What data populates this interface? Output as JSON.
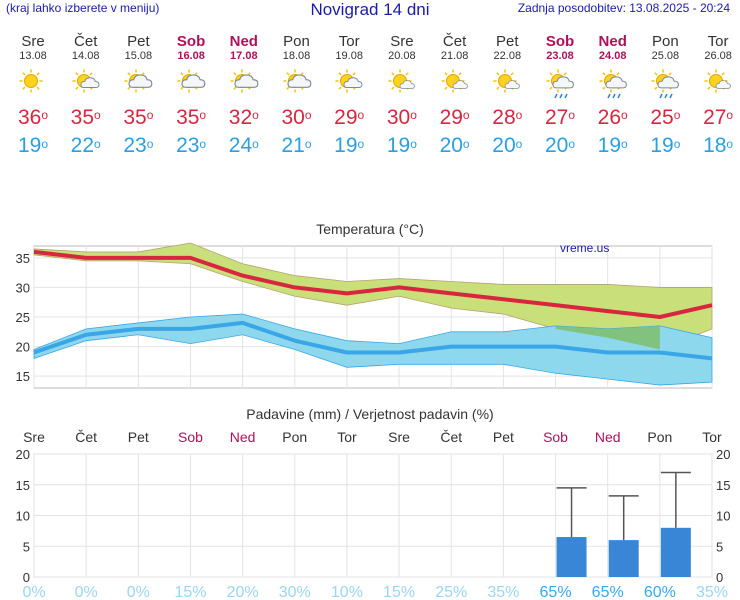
{
  "header": {
    "left_note": "(kraj lahko izberete v meniju)",
    "title": "Novigrad 14 dni",
    "last_update": "Zadnja posodobitev: 13.08.2025 - 20:24"
  },
  "days": [
    {
      "name": "Sre",
      "date": "13.08",
      "weekend": false,
      "icon": "sunny-icon",
      "tmax": "36",
      "tmin": "19"
    },
    {
      "name": "Čet",
      "date": "14.08",
      "weekend": false,
      "icon": "sun-cloud-icon",
      "tmax": "35",
      "tmin": "22"
    },
    {
      "name": "Pet",
      "date": "15.08",
      "weekend": false,
      "icon": "partly-cloudy-icon",
      "tmax": "35",
      "tmin": "23"
    },
    {
      "name": "Sob",
      "date": "16.08",
      "weekend": true,
      "icon": "partly-cloudy-icon",
      "tmax": "35",
      "tmin": "23"
    },
    {
      "name": "Ned",
      "date": "17.08",
      "weekend": true,
      "icon": "partly-cloudy-icon",
      "tmax": "32",
      "tmin": "24"
    },
    {
      "name": "Pon",
      "date": "18.08",
      "weekend": false,
      "icon": "partly-cloudy-icon",
      "tmax": "30",
      "tmin": "21"
    },
    {
      "name": "Tor",
      "date": "19.08",
      "weekend": false,
      "icon": "sun-cloud-icon",
      "tmax": "29",
      "tmin": "19"
    },
    {
      "name": "Sre",
      "date": "20.08",
      "weekend": false,
      "icon": "sun-small-cloud-icon",
      "tmax": "30",
      "tmin": "19"
    },
    {
      "name": "Čet",
      "date": "21.08",
      "weekend": false,
      "icon": "sun-small-cloud-icon",
      "tmax": "29",
      "tmin": "20"
    },
    {
      "name": "Pet",
      "date": "22.08",
      "weekend": false,
      "icon": "sun-small-cloud-icon",
      "tmax": "28",
      "tmin": "20"
    },
    {
      "name": "Sob",
      "date": "23.08",
      "weekend": true,
      "icon": "sun-cloud-rain-icon",
      "tmax": "27",
      "tmin": "20"
    },
    {
      "name": "Ned",
      "date": "24.08",
      "weekend": true,
      "icon": "sun-cloud-rain-icon",
      "tmax": "26",
      "tmin": "19"
    },
    {
      "name": "Pon",
      "date": "25.08",
      "weekend": false,
      "icon": "sun-cloud-rain-icon",
      "tmax": "25",
      "tmin": "19"
    },
    {
      "name": "Tor",
      "date": "26.08",
      "weekend": false,
      "icon": "sun-small-cloud-icon",
      "tmax": "27",
      "tmin": "18"
    }
  ],
  "colors": {
    "max_line": "#d8263e",
    "min_line": "#3aa6e8",
    "max_band": "#c9e07a",
    "min_band": "#8ed8ee",
    "overlap": "#7fbf6a",
    "bar": "#3a86d6",
    "weekend": "#b0105a",
    "prob": "#33aaee",
    "prob_low": "#9ad6f2"
  },
  "chart_data": [
    {
      "type": "line",
      "title": "Temperatura (°C)",
      "watermark": "vreme.us",
      "ylim": [
        13,
        37
      ],
      "yticks": [
        15,
        20,
        25,
        30,
        35
      ],
      "x": [
        "13.08",
        "14.08",
        "15.08",
        "16.08",
        "17.08",
        "18.08",
        "19.08",
        "20.08",
        "21.08",
        "22.08",
        "23.08",
        "24.08",
        "25.08",
        "26.08"
      ],
      "series": [
        {
          "name": "max",
          "values": [
            36,
            35,
            35,
            35,
            32,
            30,
            29,
            30,
            29,
            28,
            27,
            26,
            25,
            27
          ]
        },
        {
          "name": "max_upper",
          "values": [
            36.5,
            36,
            36,
            37.5,
            34,
            32,
            31,
            31.5,
            31,
            30.5,
            30.5,
            30.5,
            30,
            30
          ]
        },
        {
          "name": "max_lower",
          "values": [
            35.5,
            34.5,
            34.5,
            34,
            31,
            28.5,
            27,
            28.5,
            26.5,
            25.5,
            23,
            21.5,
            19.5,
            23
          ]
        },
        {
          "name": "min",
          "values": [
            19,
            22,
            23,
            23,
            24,
            21,
            19,
            19,
            20,
            20,
            20,
            19,
            19,
            18
          ]
        },
        {
          "name": "min_upper",
          "values": [
            19.5,
            23,
            24,
            25,
            25.5,
            23,
            21,
            20.5,
            22.5,
            22.5,
            23.5,
            23,
            23.5,
            21.5
          ]
        },
        {
          "name": "min_lower",
          "values": [
            18,
            21,
            22,
            20.5,
            22,
            19.5,
            16.5,
            17,
            17,
            17,
            15.5,
            14.5,
            13.5,
            14
          ]
        }
      ]
    },
    {
      "type": "bar",
      "title": "Padavine (mm) / Verjetnost padavin (%)",
      "ylim": [
        0,
        20
      ],
      "yticks": [
        0,
        5,
        10,
        15,
        20
      ],
      "categories": [
        "Sre",
        "Čet",
        "Pet",
        "Sob",
        "Ned",
        "Pon",
        "Tor",
        "Sre",
        "Čet",
        "Pet",
        "Sob",
        "Ned",
        "Pon",
        "Tor"
      ],
      "values": [
        0,
        0,
        0,
        0,
        0,
        0,
        0,
        0,
        0,
        0,
        6.5,
        6,
        8,
        0
      ],
      "error_max": [
        0,
        0,
        0,
        0,
        0,
        0,
        0,
        0,
        0,
        0,
        14.5,
        13.2,
        17,
        0
      ],
      "probability": [
        "0%",
        "0%",
        "0%",
        "15%",
        "20%",
        "30%",
        "10%",
        "15%",
        "25%",
        "35%",
        "65%",
        "65%",
        "60%",
        "35%"
      ]
    }
  ]
}
